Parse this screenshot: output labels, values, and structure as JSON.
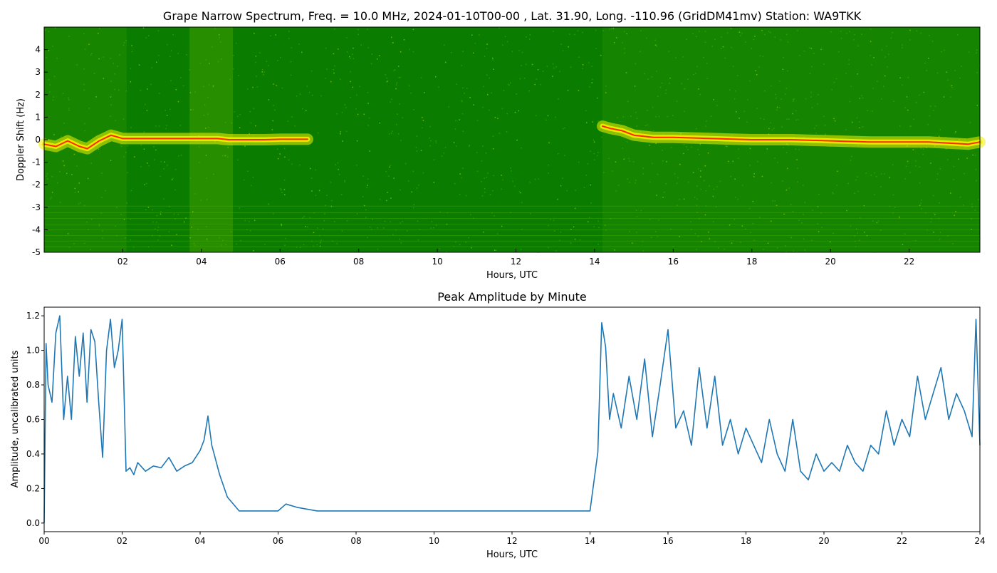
{
  "chart_data": [
    {
      "type": "heatmap",
      "title": "Grape Narrow Spectrum, Freq. = 10.0 MHz, 2024-01-10T00-00 , Lat.  31.90, Long. -110.96 (GridDM41mv) Station: WA9TKK",
      "xlabel": "Hours, UTC",
      "ylabel": "Doppler Shift (Hz)",
      "xlim": [
        0,
        23.8
      ],
      "ylim": [
        -5,
        5
      ],
      "x_ticks": [
        "02",
        "04",
        "06",
        "08",
        "10",
        "12",
        "14",
        "16",
        "18",
        "20",
        "22"
      ],
      "y_ticks": [
        "-5",
        "-4",
        "-3",
        "-2",
        "-1",
        "0",
        "1",
        "2",
        "3",
        "4"
      ],
      "colors": {
        "background": "#0a7d00",
        "mid": "#f2f200",
        "peak": "#ff2a00"
      },
      "doppler_trace": {
        "x": [
          0.0,
          0.3,
          0.6,
          0.9,
          1.1,
          1.4,
          1.7,
          1.9,
          2.0,
          2.5,
          3.0,
          3.5,
          4.0,
          4.4,
          4.7,
          5.2,
          5.6,
          6.0,
          6.4,
          6.7,
          14.2,
          14.4,
          14.7,
          15.0,
          15.5,
          16.0,
          17.0,
          18.0,
          19.0,
          20.0,
          21.0,
          22.0,
          22.5,
          23.0,
          23.5,
          23.8
        ],
        "y": [
          -0.2,
          -0.3,
          -0.05,
          -0.3,
          -0.4,
          -0.05,
          0.2,
          0.1,
          0.05,
          0.05,
          0.05,
          0.05,
          0.05,
          0.05,
          0.0,
          0.0,
          0.0,
          0.02,
          0.02,
          0.02,
          0.6,
          0.5,
          0.4,
          0.2,
          0.1,
          0.1,
          0.05,
          0.0,
          0.0,
          -0.05,
          -0.1,
          -0.1,
          -0.1,
          -0.15,
          -0.2,
          -0.1
        ]
      }
    },
    {
      "type": "line",
      "title": "Peak Amplitude by Minute",
      "xlabel": "Hours, UTC",
      "ylabel": "Amplitude, uncalibrated units",
      "xlim": [
        0,
        24
      ],
      "ylim": [
        -0.05,
        1.25
      ],
      "x_ticks": [
        "00",
        "02",
        "04",
        "06",
        "08",
        "10",
        "12",
        "14",
        "16",
        "18",
        "20",
        "22",
        "24"
      ],
      "y_ticks": [
        "0.0",
        "0.2",
        "0.4",
        "0.6",
        "0.8",
        "1.0",
        "1.2"
      ],
      "line_color": "#1f77b4",
      "x": [
        0.0,
        0.05,
        0.1,
        0.2,
        0.3,
        0.4,
        0.5,
        0.6,
        0.7,
        0.8,
        0.9,
        1.0,
        1.1,
        1.2,
        1.3,
        1.4,
        1.5,
        1.6,
        1.7,
        1.8,
        1.9,
        2.0,
        2.1,
        2.2,
        2.3,
        2.4,
        2.6,
        2.8,
        3.0,
        3.2,
        3.4,
        3.6,
        3.8,
        4.0,
        4.1,
        4.2,
        4.3,
        4.5,
        4.7,
        5.0,
        5.5,
        6.0,
        6.2,
        6.5,
        7.0,
        8.0,
        9.0,
        10.0,
        11.0,
        12.0,
        13.0,
        14.0,
        14.2,
        14.3,
        14.4,
        14.5,
        14.6,
        14.8,
        15.0,
        15.2,
        15.4,
        15.6,
        15.8,
        16.0,
        16.2,
        16.4,
        16.6,
        16.8,
        17.0,
        17.2,
        17.4,
        17.6,
        17.8,
        18.0,
        18.2,
        18.4,
        18.6,
        18.8,
        19.0,
        19.2,
        19.4,
        19.6,
        19.8,
        20.0,
        20.2,
        20.4,
        20.6,
        20.8,
        21.0,
        21.2,
        21.4,
        21.6,
        21.8,
        22.0,
        22.2,
        22.4,
        22.6,
        22.8,
        23.0,
        23.2,
        23.4,
        23.6,
        23.8,
        23.9,
        24.0
      ],
      "y": [
        0.0,
        1.04,
        0.8,
        0.7,
        1.1,
        1.2,
        0.6,
        0.85,
        0.6,
        1.08,
        0.85,
        1.1,
        0.7,
        1.12,
        1.05,
        0.7,
        0.38,
        1.0,
        1.18,
        0.9,
        1.0,
        1.18,
        0.3,
        0.32,
        0.28,
        0.35,
        0.3,
        0.33,
        0.32,
        0.38,
        0.3,
        0.33,
        0.35,
        0.42,
        0.48,
        0.62,
        0.45,
        0.28,
        0.15,
        0.07,
        0.07,
        0.07,
        0.11,
        0.09,
        0.07,
        0.07,
        0.07,
        0.07,
        0.07,
        0.07,
        0.07,
        0.07,
        0.41,
        1.16,
        1.02,
        0.6,
        0.75,
        0.55,
        0.85,
        0.6,
        0.95,
        0.5,
        0.8,
        1.12,
        0.55,
        0.65,
        0.45,
        0.9,
        0.55,
        0.85,
        0.45,
        0.6,
        0.4,
        0.55,
        0.45,
        0.35,
        0.6,
        0.4,
        0.3,
        0.6,
        0.3,
        0.25,
        0.4,
        0.3,
        0.35,
        0.3,
        0.45,
        0.35,
        0.3,
        0.45,
        0.4,
        0.65,
        0.45,
        0.6,
        0.5,
        0.85,
        0.6,
        0.75,
        0.9,
        0.6,
        0.75,
        0.65,
        0.5,
        1.18,
        0.45
      ]
    }
  ]
}
